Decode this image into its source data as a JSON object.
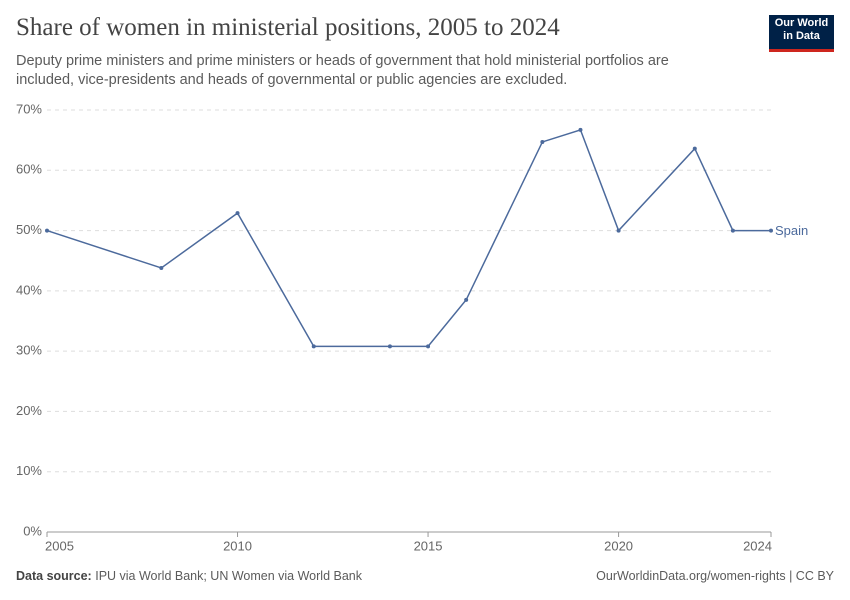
{
  "logo": [
    "Our World",
    "in Data"
  ],
  "chart_data": {
    "type": "line",
    "title": "Share of women in ministerial positions, 2005 to 2024",
    "subtitle": "Deputy prime ministers and prime ministers or heads of government that hold ministerial portfolios are included, vice-presidents and heads of governmental or public agencies are excluded.",
    "source_label": "Data source:",
    "source": "IPU via World Bank; UN Women via World Bank",
    "credit": "OurWorldinData.org/women-rights | CC BY",
    "x": [
      2005,
      2008,
      2010,
      2012,
      2014,
      2015,
      2016,
      2018,
      2019,
      2020,
      2022,
      2023,
      2024
    ],
    "series": [
      {
        "name": "Spain",
        "color": "#4c6a9c",
        "values": [
          50,
          43.8,
          52.9,
          30.8,
          30.8,
          30.8,
          38.5,
          64.7,
          66.7,
          50,
          63.6,
          50,
          50
        ]
      }
    ],
    "xlim": [
      2005,
      2024
    ],
    "xticks": [
      2005,
      2010,
      2015,
      2020,
      2024
    ],
    "ylim": [
      0,
      70
    ],
    "yticks": [
      {
        "value": 0,
        "label": "0%"
      },
      {
        "value": 10,
        "label": "10%"
      },
      {
        "value": 20,
        "label": "20%"
      },
      {
        "value": 30,
        "label": "30%"
      },
      {
        "value": 40,
        "label": "40%"
      },
      {
        "value": 50,
        "label": "50%"
      },
      {
        "value": 60,
        "label": "60%"
      },
      {
        "value": 70,
        "label": "70%"
      }
    ],
    "grid": true
  }
}
